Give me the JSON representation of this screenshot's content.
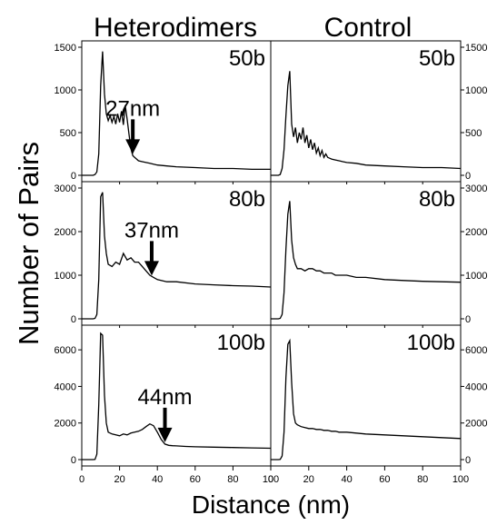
{
  "column_titles": [
    "Heterodimers",
    "Control"
  ],
  "ylabel": "Number of Pairs",
  "xlabel": "Distance (nm)",
  "panel_labels": [
    "50b",
    "80b",
    "100b"
  ],
  "annotations": [
    {
      "text": "27nm",
      "x": 27
    },
    {
      "text": "37nm",
      "x": 37
    },
    {
      "text": "44nm",
      "x": 44
    }
  ],
  "chart_data": {
    "type": "line",
    "xlabel": "Distance (nm)",
    "ylabel": "Number of Pairs",
    "xlim": [
      0,
      100
    ],
    "xticks": [
      0,
      20,
      40,
      60,
      80,
      100
    ],
    "rows": [
      {
        "label": "50b",
        "ylim": [
          0,
          1500
        ],
        "yticks": [
          0,
          500,
          1000,
          1500
        ],
        "annotation": {
          "text": "27nm",
          "x": 27
        },
        "series": [
          {
            "column": "Heterodimers",
            "x": [
              0,
              1,
              2,
              3,
              4,
              5,
              6,
              7,
              8,
              9,
              10,
              11,
              12,
              13,
              14,
              15,
              16,
              17,
              18,
              19,
              20,
              21,
              22,
              23,
              24,
              25,
              26,
              27,
              28,
              29,
              30,
              32,
              34,
              36,
              38,
              40,
              45,
              50,
              60,
              70,
              80,
              90,
              100
            ],
            "y": [
              0,
              0,
              0,
              0,
              0,
              0,
              0,
              10,
              40,
              250,
              1050,
              1450,
              950,
              720,
              640,
              700,
              620,
              690,
              600,
              720,
              620,
              750,
              590,
              820,
              660,
              480,
              310,
              230,
              210,
              190,
              170,
              160,
              150,
              140,
              130,
              120,
              110,
              100,
              90,
              80,
              80,
              70,
              70
            ]
          },
          {
            "column": "Control",
            "x": [
              0,
              1,
              2,
              3,
              4,
              5,
              6,
              7,
              8,
              9,
              10,
              11,
              12,
              13,
              14,
              15,
              16,
              17,
              18,
              19,
              20,
              21,
              22,
              23,
              24,
              25,
              26,
              27,
              28,
              29,
              30,
              32,
              34,
              36,
              38,
              40,
              45,
              50,
              60,
              70,
              80,
              90,
              100
            ],
            "y": [
              0,
              0,
              0,
              0,
              0,
              10,
              80,
              300,
              700,
              1050,
              1220,
              600,
              450,
              560,
              380,
              500,
              420,
              560,
              380,
              470,
              320,
              420,
              300,
              380,
              260,
              320,
              230,
              290,
              210,
              250,
              210,
              190,
              180,
              170,
              160,
              150,
              140,
              120,
              110,
              100,
              90,
              90,
              80
            ]
          }
        ]
      },
      {
        "label": "80b",
        "ylim": [
          0,
          3000
        ],
        "yticks": [
          0,
          1000,
          2000,
          3000
        ],
        "annotation": {
          "text": "37nm",
          "x": 37
        },
        "series": [
          {
            "column": "Heterodimers",
            "x": [
              0,
              1,
              2,
              3,
              4,
              5,
              6,
              7,
              8,
              9,
              10,
              11,
              12,
              13,
              14,
              16,
              18,
              20,
              22,
              24,
              26,
              28,
              30,
              32,
              34,
              36,
              38,
              40,
              45,
              50,
              60,
              70,
              80,
              90,
              100
            ],
            "y": [
              0,
              0,
              0,
              0,
              0,
              0,
              0,
              10,
              100,
              900,
              2800,
              2900,
              1900,
              1500,
              1250,
              1200,
              1300,
              1250,
              1500,
              1350,
              1400,
              1300,
              1300,
              1200,
              1100,
              1000,
              950,
              900,
              850,
              850,
              800,
              780,
              760,
              750,
              730
            ]
          },
          {
            "column": "Control",
            "x": [
              0,
              1,
              2,
              3,
              4,
              5,
              6,
              7,
              8,
              9,
              10,
              11,
              12,
              13,
              14,
              16,
              18,
              20,
              22,
              24,
              26,
              28,
              30,
              32,
              34,
              36,
              38,
              40,
              45,
              50,
              60,
              70,
              80,
              90,
              100
            ],
            "y": [
              0,
              0,
              0,
              0,
              0,
              10,
              100,
              600,
              1600,
              2400,
              2700,
              1800,
              1400,
              1250,
              1150,
              1150,
              1100,
              1150,
              1150,
              1100,
              1100,
              1050,
              1050,
              1050,
              1000,
              1000,
              1000,
              1000,
              950,
              950,
              900,
              880,
              860,
              850,
              840
            ]
          }
        ]
      },
      {
        "label": "100b",
        "ylim": [
          0,
          7000
        ],
        "yticks": [
          0,
          2000,
          4000,
          6000
        ],
        "annotation": {
          "text": "44nm",
          "x": 44
        },
        "series": [
          {
            "column": "Heterodimers",
            "x": [
              0,
              1,
              2,
              3,
              4,
              5,
              6,
              7,
              8,
              9,
              10,
              11,
              12,
              13,
              14,
              16,
              18,
              20,
              22,
              24,
              26,
              28,
              30,
              32,
              34,
              36,
              38,
              40,
              42,
              44,
              46,
              48,
              50,
              55,
              60,
              70,
              80,
              90,
              100
            ],
            "y": [
              0,
              0,
              0,
              0,
              0,
              0,
              0,
              10,
              300,
              3000,
              6900,
              6800,
              3500,
              2000,
              1500,
              1400,
              1350,
              1300,
              1400,
              1350,
              1450,
              1500,
              1550,
              1650,
              1800,
              1950,
              1850,
              1500,
              1100,
              850,
              780,
              760,
              750,
              720,
              700,
              680,
              660,
              640,
              620
            ]
          },
          {
            "column": "Control",
            "x": [
              0,
              1,
              2,
              3,
              4,
              5,
              6,
              7,
              8,
              9,
              10,
              11,
              12,
              13,
              14,
              16,
              18,
              20,
              22,
              24,
              26,
              28,
              30,
              32,
              34,
              36,
              38,
              40,
              45,
              50,
              60,
              70,
              80,
              90,
              100
            ],
            "y": [
              0,
              0,
              0,
              0,
              0,
              10,
              200,
              1500,
              4500,
              6300,
              6500,
              4200,
              2500,
              2000,
              1900,
              1800,
              1750,
              1700,
              1700,
              1650,
              1650,
              1600,
              1600,
              1550,
              1550,
              1500,
              1500,
              1500,
              1450,
              1400,
              1350,
              1300,
              1250,
              1200,
              1150
            ]
          }
        ]
      }
    ]
  }
}
